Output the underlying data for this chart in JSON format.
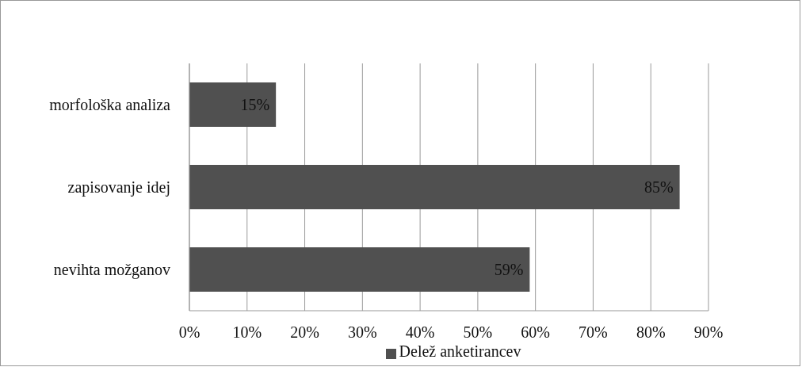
{
  "chart_data": {
    "type": "bar",
    "orientation": "horizontal",
    "categories": [
      "morfološka analiza",
      "zapisovanje idej",
      "nevihta možganov"
    ],
    "series": [
      {
        "name": "Delež anketirancev",
        "color": "#505050",
        "values": [
          15,
          85,
          59
        ],
        "value_labels": [
          "15%",
          "85%",
          "59%"
        ]
      }
    ],
    "xlim": [
      0,
      90
    ],
    "xticks": [
      {
        "value": 0,
        "label": "0%"
      },
      {
        "value": 10,
        "label": "10%"
      },
      {
        "value": 20,
        "label": "20%"
      },
      {
        "value": 30,
        "label": "30%"
      },
      {
        "value": 40,
        "label": "40%"
      },
      {
        "value": 50,
        "label": "50%"
      },
      {
        "value": 60,
        "label": "60%"
      },
      {
        "value": 70,
        "label": "70%"
      },
      {
        "value": 80,
        "label": "80%"
      },
      {
        "value": 90,
        "label": "90%"
      }
    ],
    "grid": "x",
    "legend": "bottom"
  }
}
